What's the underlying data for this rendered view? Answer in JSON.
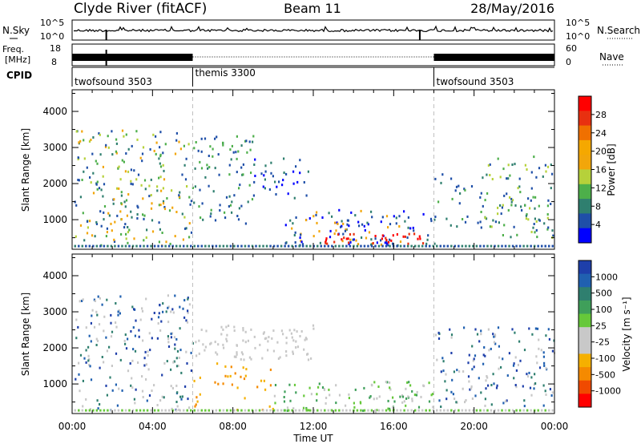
{
  "header": {
    "station": "Clyde River (fitACF)",
    "beam": "Beam 11",
    "date": "28/May/2016"
  },
  "sky_panel": {
    "label": "N.Sky",
    "y_top": "10^5",
    "y_bottom": "10^0",
    "right_label": "N.Search",
    "right_top": "10^5",
    "right_bottom": "10^0"
  },
  "freq_panel": {
    "label_line1": "Freq.",
    "label_line2": "[MHz]",
    "y_top": "18",
    "y_bottom": "8",
    "right_label": "Nave",
    "right_top": "60",
    "right_bottom": "0"
  },
  "cpid_panel": {
    "label": "CPID",
    "segments": [
      {
        "name": "twofsound 3503",
        "start": 0,
        "end": 6
      },
      {
        "name": "themis 3300",
        "start": 6,
        "end": 18
      },
      {
        "name": "twofsound 3503",
        "start": 18,
        "end": 24
      }
    ]
  },
  "x_axis": {
    "title": "Time UT",
    "range": [
      0,
      24
    ],
    "ticks": [
      {
        "v": 0,
        "label": "00:00"
      },
      {
        "v": 4,
        "label": "04:00"
      },
      {
        "v": 8,
        "label": "08:00"
      },
      {
        "v": 12,
        "label": "12:00"
      },
      {
        "v": 16,
        "label": "16:00"
      },
      {
        "v": 20,
        "label": "20:00"
      },
      {
        "v": 24,
        "label": "00:00"
      }
    ]
  },
  "chart_data": [
    {
      "type": "heatmap",
      "name": "power",
      "ylabel": "Slant Range [km]",
      "ylim": [
        180,
        4600
      ],
      "yticks": [
        1000,
        2000,
        3000,
        4000
      ],
      "colorbar_label": "Power [dB]",
      "colorbar_ticks": [
        4,
        8,
        12,
        16,
        20,
        24,
        28
      ],
      "colors": [
        "#0000ff",
        "#1f4fa8",
        "#2f7f6f",
        "#4daf4a",
        "#b6d13a",
        "#f2a60a",
        "#f5a800",
        "#f07000",
        "#e83010",
        "#ff0000"
      ],
      "regions": [
        {
          "t": [
            0.1,
            6.0
          ],
          "r": [
            300,
            3500
          ],
          "density": 0.55,
          "levels": [
            1,
            2,
            3,
            4,
            5
          ]
        },
        {
          "t": [
            6.0,
            9.0
          ],
          "r": [
            900,
            3400
          ],
          "density": 0.5,
          "levels": [
            1,
            2,
            3
          ]
        },
        {
          "t": [
            9.0,
            12.0
          ],
          "r": [
            1600,
            2800
          ],
          "density": 0.45,
          "levels": [
            0,
            1,
            2
          ]
        },
        {
          "t": [
            10.5,
            18.0
          ],
          "r": [
            300,
            1300
          ],
          "density": 0.7,
          "levels": [
            0,
            1,
            2,
            5
          ]
        },
        {
          "t": [
            12.5,
            17.5
          ],
          "r": [
            350,
            650
          ],
          "density": 1.0,
          "levels": [
            8,
            9
          ]
        },
        {
          "t": [
            18.0,
            20.5
          ],
          "r": [
            800,
            2300
          ],
          "density": 0.35,
          "levels": [
            1,
            2,
            3
          ]
        },
        {
          "t": [
            20.5,
            24.0
          ],
          "r": [
            500,
            2800
          ],
          "density": 0.55,
          "levels": [
            1,
            2,
            3,
            4
          ]
        }
      ]
    },
    {
      "type": "heatmap",
      "name": "velocity",
      "ylabel": "Slant Range [km]",
      "ylim": [
        180,
        4600
      ],
      "yticks": [
        1000,
        2000,
        3000,
        4000
      ],
      "colorbar_label": "Velocity [m s⁻¹]",
      "colorbar_ticks": [
        1000,
        500,
        100,
        25,
        -25,
        -100,
        -500,
        -1000
      ],
      "colors": [
        "#1e3faa",
        "#2060b0",
        "#2f7f6f",
        "#3f9f5a",
        "#66c83a",
        "#c8c8c8",
        "#c8c8c8",
        "#f5b000",
        "#f58a00",
        "#f04a00",
        "#ff0000"
      ],
      "regions": [
        {
          "t": [
            0.1,
            6.0
          ],
          "r": [
            300,
            3500
          ],
          "density": 0.5,
          "levels": [
            0,
            1,
            2,
            5,
            6
          ]
        },
        {
          "t": [
            6.0,
            12.0
          ],
          "r": [
            1700,
            2700
          ],
          "density": 0.7,
          "levels": [
            5,
            6
          ]
        },
        {
          "t": [
            6.0,
            10.0
          ],
          "r": [
            300,
            1600
          ],
          "density": 0.3,
          "levels": [
            7,
            8
          ]
        },
        {
          "t": [
            10.0,
            18.0
          ],
          "r": [
            250,
            1100
          ],
          "density": 0.65,
          "levels": [
            3,
            4,
            5
          ]
        },
        {
          "t": [
            18.0,
            24.0
          ],
          "r": [
            400,
            2600
          ],
          "density": 0.5,
          "levels": [
            0,
            1,
            2,
            5
          ]
        }
      ]
    }
  ]
}
